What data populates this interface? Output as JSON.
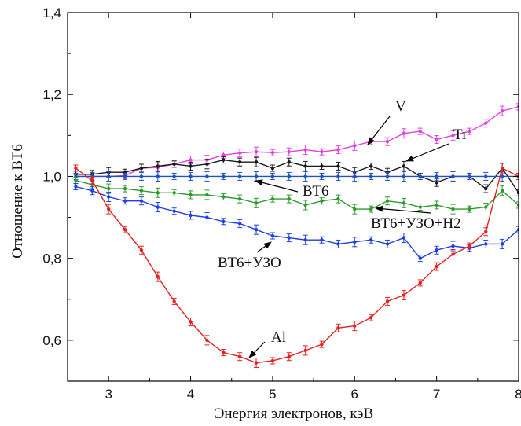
{
  "chart_data": {
    "type": "line",
    "title": "",
    "xlabel": "Энергия электронов, кэВ",
    "ylabel": "Отношение к ВТ6",
    "xlim": [
      2.5,
      8.0
    ],
    "ylim": [
      0.5,
      1.4
    ],
    "x_ticks": [
      3,
      4,
      5,
      6,
      7,
      8
    ],
    "x_tick_labels": [
      "3",
      "4",
      "5",
      "6",
      "7",
      "8"
    ],
    "y_ticks": [
      0.6,
      0.8,
      1.0,
      1.2,
      1.4
    ],
    "y_tick_labels": [
      "0,6",
      "0,8",
      "1,0",
      "1,2",
      "1,4"
    ],
    "grid": false,
    "legend": "none",
    "x": [
      2.6,
      2.8,
      3.0,
      3.2,
      3.4,
      3.6,
      3.8,
      4.0,
      4.2,
      4.4,
      4.6,
      4.8,
      5.0,
      5.2,
      5.4,
      5.6,
      5.8,
      6.0,
      6.2,
      6.4,
      6.6,
      6.8,
      7.0,
      7.2,
      7.4,
      7.6,
      7.8,
      8.0
    ],
    "series": [
      {
        "name": "V",
        "color": "#e040e0",
        "values": [
          1.0,
          1.0,
          1.0,
          1.002,
          1.02,
          1.022,
          1.03,
          1.04,
          1.04,
          1.052,
          1.057,
          1.06,
          1.058,
          1.06,
          1.065,
          1.06,
          1.065,
          1.075,
          1.085,
          1.085,
          1.105,
          1.11,
          1.09,
          1.1,
          1.11,
          1.13,
          1.16,
          1.17
        ]
      },
      {
        "name": "Ti",
        "color": "#1a1a1a",
        "values": [
          1.005,
          1.005,
          1.01,
          1.01,
          1.02,
          1.025,
          1.03,
          1.025,
          1.03,
          1.04,
          1.035,
          1.035,
          1.02,
          1.035,
          1.025,
          1.025,
          1.025,
          1.01,
          1.025,
          1.01,
          1.025,
          1.0,
          0.985,
          1.0,
          1.0,
          0.97,
          1.02,
          0.96
        ]
      },
      {
        "name": "ВТ6",
        "color": "#2050c8",
        "values": [
          1.0,
          1.0,
          1.0,
          1.0,
          1.0,
          1.0,
          1.0,
          1.0,
          1.0,
          1.0,
          1.0,
          1.0,
          1.0,
          1.0,
          1.0,
          1.0,
          1.0,
          1.0,
          1.0,
          1.0,
          1.0,
          1.0,
          1.0,
          1.0,
          1.0,
          1.0,
          1.0,
          1.0
        ]
      },
      {
        "name": "ВТ6+УЗО+Н2",
        "color": "#2e9a2e",
        "values": [
          0.99,
          0.98,
          0.97,
          0.97,
          0.965,
          0.96,
          0.96,
          0.955,
          0.955,
          0.95,
          0.945,
          0.935,
          0.945,
          0.945,
          0.93,
          0.94,
          0.945,
          0.92,
          0.92,
          0.94,
          0.935,
          0.925,
          0.93,
          0.92,
          0.92,
          0.925,
          0.965,
          0.93
        ]
      },
      {
        "name": "ВТ6+УЗО",
        "color": "#1e3ee6",
        "values": [
          0.975,
          0.965,
          0.95,
          0.94,
          0.94,
          0.925,
          0.915,
          0.905,
          0.9,
          0.89,
          0.885,
          0.87,
          0.855,
          0.85,
          0.845,
          0.845,
          0.835,
          0.84,
          0.845,
          0.835,
          0.85,
          0.8,
          0.82,
          0.83,
          0.825,
          0.835,
          0.835,
          0.87
        ]
      },
      {
        "name": "Al",
        "color": "#e62020",
        "values": [
          1.02,
          0.99,
          0.92,
          0.87,
          0.82,
          0.755,
          0.695,
          0.645,
          0.6,
          0.57,
          0.56,
          0.545,
          0.55,
          0.56,
          0.575,
          0.59,
          0.63,
          0.635,
          0.655,
          0.695,
          0.71,
          0.74,
          0.78,
          0.81,
          0.83,
          0.865,
          1.02,
          1.0
        ]
      }
    ],
    "annotations": [
      {
        "text": "V",
        "series": "V"
      },
      {
        "text": "Ti",
        "series": "Ti"
      },
      {
        "text": "ВТ6",
        "series": "ВТ6"
      },
      {
        "text": "ВТ6+УЗО+Н2",
        "series": "ВТ6+УЗО+Н2"
      },
      {
        "text": "ВТ6+УЗО",
        "series": "ВТ6+УЗО"
      },
      {
        "text": "Al",
        "series": "Al"
      }
    ]
  }
}
